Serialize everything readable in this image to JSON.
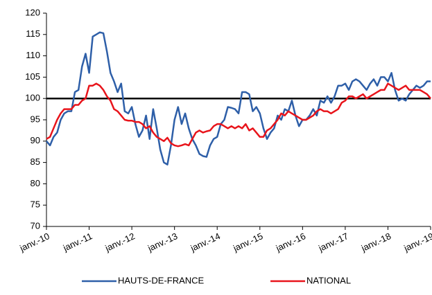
{
  "chart_data": {
    "type": "line",
    "categories": [
      "janv.-10",
      null,
      null,
      null,
      null,
      null,
      null,
      null,
      null,
      null,
      null,
      null,
      "janv.-11",
      null,
      null,
      null,
      null,
      null,
      null,
      null,
      null,
      null,
      null,
      null,
      "janv.-12",
      null,
      null,
      null,
      null,
      null,
      null,
      null,
      null,
      null,
      null,
      null,
      "janv.-13",
      null,
      null,
      null,
      null,
      null,
      null,
      null,
      null,
      null,
      null,
      null,
      "janv.-14",
      null,
      null,
      null,
      null,
      null,
      null,
      null,
      null,
      null,
      null,
      null,
      "janv.-15",
      null,
      null,
      null,
      null,
      null,
      null,
      null,
      null,
      null,
      null,
      null,
      "janv.-16",
      null,
      null,
      null,
      null,
      null,
      null,
      null,
      null,
      null,
      null,
      null,
      "janv.-17",
      null,
      null,
      null,
      null,
      null,
      null,
      null,
      null,
      null,
      null,
      null,
      "janv.-18",
      null,
      null,
      null,
      null,
      null,
      null,
      null,
      null,
      null,
      null,
      null,
      "janv.-19"
    ],
    "series": [
      {
        "name": "HAUTS-DE-FRANCE",
        "color": "#2e5fa8",
        "values": [
          90,
          89,
          91,
          92,
          95,
          96.5,
          97,
          97,
          101.5,
          102,
          107.5,
          110.5,
          106,
          114.5,
          115,
          115.5,
          115.3,
          111,
          106,
          104,
          101.5,
          103.5,
          97,
          96.5,
          98,
          94,
          91,
          92.5,
          96,
          90.5,
          97.5,
          93,
          88,
          85,
          84.5,
          89,
          95,
          98,
          94,
          96.5,
          93,
          90.5,
          89,
          87,
          86.5,
          86.3,
          89,
          90.5,
          91,
          94,
          95,
          98,
          97.8,
          97.5,
          96.5,
          101.5,
          101.5,
          101,
          97,
          98,
          96.5,
          93,
          90.5,
          92,
          93,
          96,
          95,
          97.5,
          97,
          99.5,
          96,
          93.5,
          95,
          95,
          96,
          97.5,
          96,
          99.5,
          99,
          100.5,
          99,
          100.5,
          103,
          103,
          103.5,
          102,
          104,
          104.5,
          104,
          103,
          102,
          103.5,
          104.5,
          103,
          105,
          105,
          104,
          106,
          102,
          99.5,
          100,
          99.5,
          101,
          102,
          103,
          102.5,
          103,
          104,
          104
        ]
      },
      {
        "name": "NATIONAL",
        "color": "#e8141b",
        "values": [
          90.5,
          91,
          93,
          95,
          96.5,
          97.5,
          97.5,
          97.5,
          98.5,
          98.5,
          99.5,
          100,
          103,
          103,
          103.5,
          103,
          102,
          100.5,
          99.5,
          97.5,
          97,
          96,
          95,
          94.8,
          94.8,
          94.5,
          94.5,
          94,
          93,
          93.5,
          92,
          91,
          90.5,
          90,
          90.8,
          89.5,
          89,
          88.8,
          89,
          89.3,
          89,
          90.5,
          92,
          92.5,
          92,
          92.3,
          92.5,
          93.5,
          94,
          94,
          93.5,
          93,
          93.5,
          93,
          93.5,
          93,
          94,
          92.5,
          93,
          92,
          91,
          91,
          92.5,
          93,
          94,
          95,
          96.5,
          96,
          97,
          96.5,
          96,
          95.5,
          95,
          95,
          95.5,
          96,
          97,
          97.5,
          97,
          97,
          96.5,
          97,
          97.5,
          99,
          99.5,
          100.5,
          100.5,
          100,
          100.5,
          101,
          100,
          100.5,
          101,
          101.5,
          102,
          102,
          103.5,
          103,
          102.5,
          102,
          102.5,
          103,
          102,
          102,
          102,
          102,
          101.5,
          101,
          100
        ]
      }
    ],
    "ylim": [
      70,
      120
    ],
    "yticks": [
      70,
      75,
      80,
      85,
      90,
      95,
      100,
      105,
      110,
      115,
      120
    ],
    "reference_line": 100,
    "grid": false,
    "legend": "bottom"
  }
}
